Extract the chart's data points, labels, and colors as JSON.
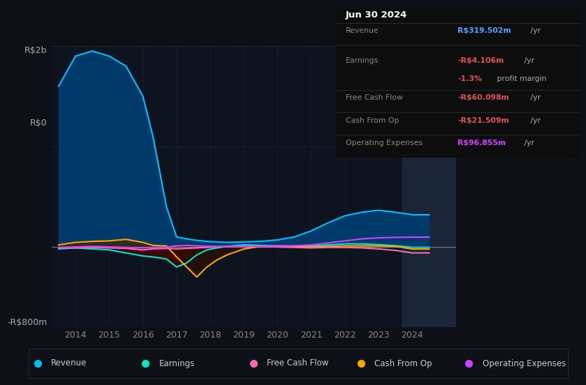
{
  "bg_color": "#0d1117",
  "plot_bg": "#0d1420",
  "grid_color": "#1e2a3a",
  "title_date": "Jun 30 2024",
  "ylabel_top": "R$2b",
  "ylabel_zero": "R$0",
  "ylabel_bot": "-R$800m",
  "ylim": [
    -800,
    2000
  ],
  "xlim": [
    2013.3,
    2025.3
  ],
  "xticks": [
    2014,
    2015,
    2016,
    2017,
    2018,
    2019,
    2020,
    2021,
    2022,
    2023,
    2024
  ],
  "legend": [
    {
      "label": "Revenue",
      "color": "#00bfff"
    },
    {
      "label": "Earnings",
      "color": "#00e5cc"
    },
    {
      "label": "Free Cash Flow",
      "color": "#ff69b4"
    },
    {
      "label": "Cash From Op",
      "color": "#ffa500"
    },
    {
      "label": "Operating Expenses",
      "color": "#cc44ff"
    }
  ],
  "series": {
    "x": [
      2013.5,
      2014.0,
      2014.5,
      2015.0,
      2015.5,
      2016.0,
      2016.3,
      2016.7,
      2017.0,
      2017.3,
      2017.6,
      2017.9,
      2018.2,
      2018.5,
      2019.0,
      2019.5,
      2020.0,
      2020.5,
      2021.0,
      2021.5,
      2022.0,
      2022.5,
      2023.0,
      2023.5,
      2024.0,
      2024.5
    ],
    "revenue": [
      1600,
      1900,
      1950,
      1900,
      1800,
      1500,
      1100,
      400,
      100,
      80,
      65,
      55,
      50,
      45,
      50,
      55,
      70,
      100,
      160,
      240,
      310,
      345,
      365,
      345,
      320,
      320
    ],
    "earnings": [
      -20,
      -10,
      -20,
      -30,
      -60,
      -90,
      -100,
      -120,
      -200,
      -160,
      -80,
      -30,
      -10,
      5,
      20,
      15,
      10,
      5,
      8,
      20,
      30,
      30,
      22,
      12,
      -4,
      -4
    ],
    "fcf": [
      -10,
      -10,
      -5,
      -10,
      -15,
      -30,
      -20,
      -15,
      -20,
      -15,
      -10,
      -5,
      0,
      5,
      5,
      3,
      0,
      -5,
      -10,
      -5,
      -5,
      -10,
      -20,
      -35,
      -60,
      -60
    ],
    "cashop": [
      20,
      45,
      55,
      60,
      75,
      45,
      15,
      10,
      -100,
      -200,
      -300,
      -200,
      -130,
      -80,
      -20,
      5,
      10,
      5,
      2,
      5,
      10,
      10,
      10,
      5,
      -21,
      -21
    ],
    "opex": [
      -5,
      0,
      5,
      0,
      -5,
      -10,
      -5,
      -2,
      10,
      15,
      10,
      7,
      5,
      5,
      5,
      8,
      10,
      12,
      20,
      40,
      60,
      80,
      90,
      95,
      97,
      97
    ]
  },
  "highlight_x_start": 2023.7,
  "highlight_x_end": 2025.3,
  "table_rows": [
    {
      "label": "Revenue",
      "value": "R$319.502m",
      "value_color": "#4da6ff",
      "suffix": " /yr",
      "extra": null
    },
    {
      "label": "Earnings",
      "value": "-R$4.106m",
      "value_color": "#e05555",
      "suffix": " /yr",
      "extra": "-1.3% profit margin"
    },
    {
      "label": "Free Cash Flow",
      "value": "-R$60.098m",
      "value_color": "#e05555",
      "suffix": " /yr",
      "extra": null
    },
    {
      "label": "Cash From Op",
      "value": "-R$21.509m",
      "value_color": "#e05555",
      "suffix": " /yr",
      "extra": null
    },
    {
      "label": "Operating Expenses",
      "value": "R$96.855m",
      "value_color": "#cc44ff",
      "suffix": " /yr",
      "extra": null
    }
  ]
}
